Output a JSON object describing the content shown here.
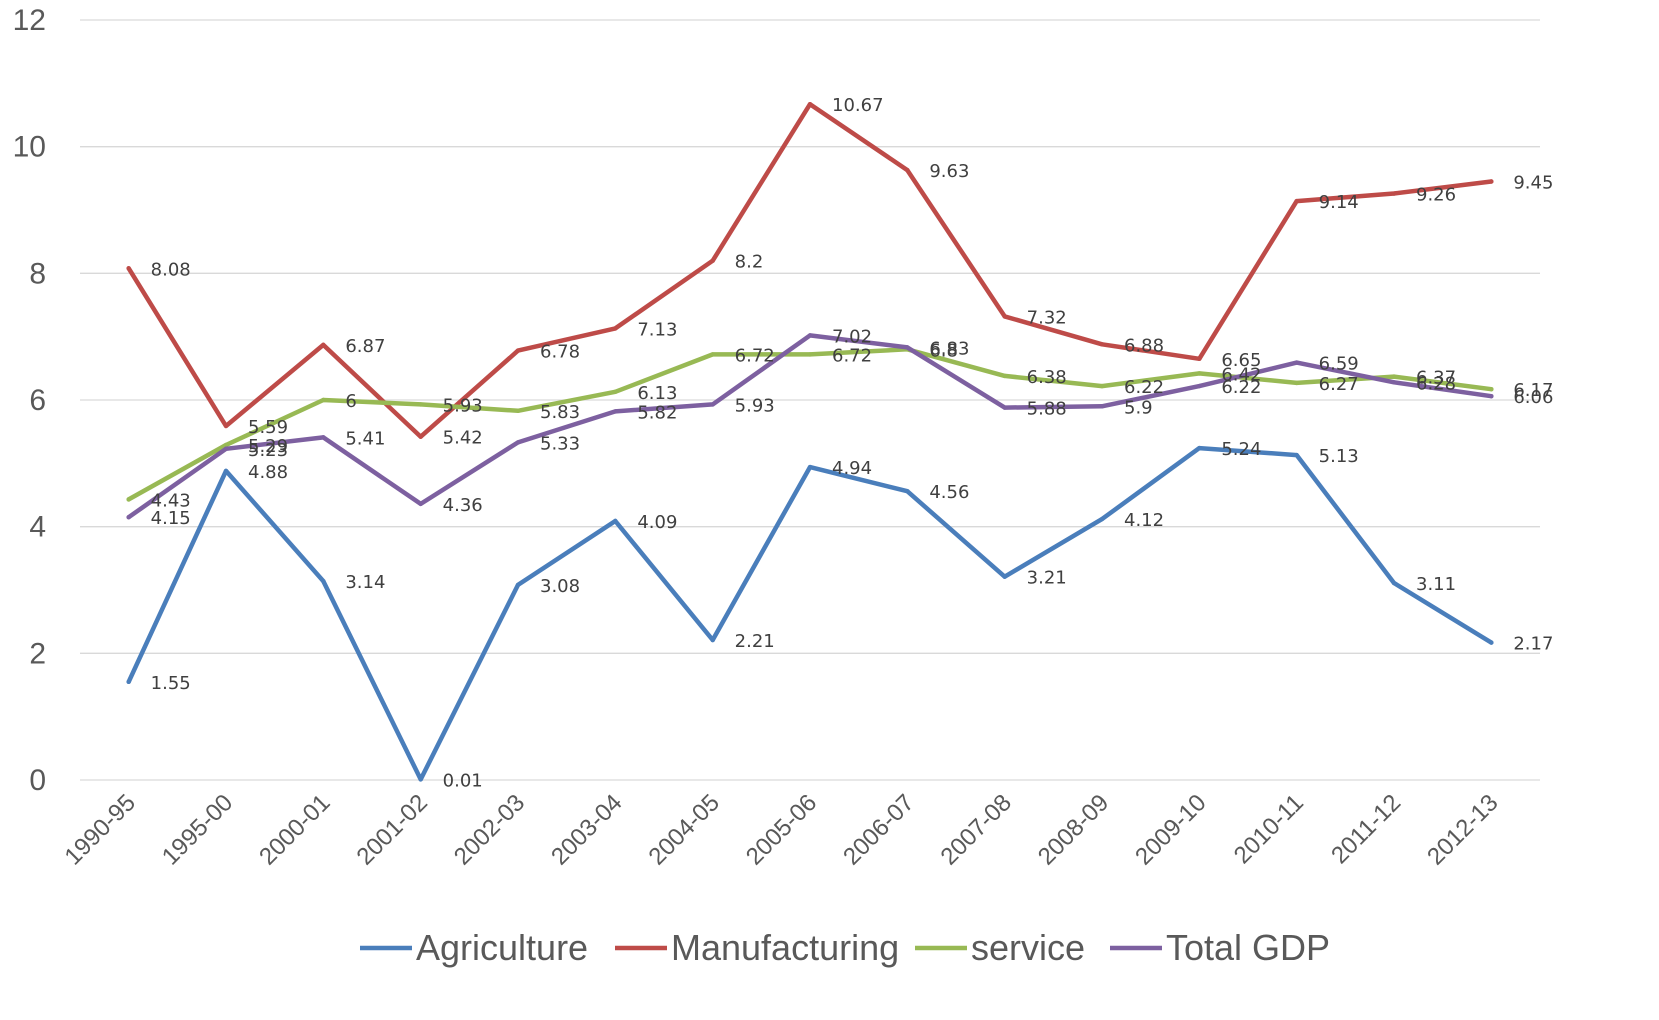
{
  "chart_data": {
    "type": "line",
    "title": "",
    "xlabel": "",
    "ylabel": "",
    "ylim": [
      0,
      12
    ],
    "yticks": [
      0,
      2,
      4,
      6,
      8,
      10,
      12
    ],
    "grid": "horizontal",
    "legend_position": "bottom",
    "categories": [
      "1990-95",
      "1995-00",
      "2000-01",
      "2001-02",
      "2002-03",
      "2003-04",
      "2004-05",
      "2005-06",
      "2006-07",
      "2007-08",
      "2008-09",
      "2009-10",
      "2010-11",
      "2011-12",
      "2012-13"
    ],
    "series": [
      {
        "name": "Agriculture",
        "color": "#4a7ebb",
        "values": [
          1.55,
          4.88,
          3.14,
          0.01,
          3.08,
          4.09,
          2.21,
          4.94,
          4.56,
          3.21,
          4.12,
          5.24,
          5.13,
          3.11,
          2.17
        ]
      },
      {
        "name": "Manufacturing",
        "color": "#be4b48",
        "values": [
          8.08,
          5.59,
          6.87,
          5.42,
          6.78,
          7.13,
          8.2,
          10.67,
          9.63,
          7.32,
          6.88,
          6.65,
          9.14,
          9.26,
          9.45
        ]
      },
      {
        "name": "service",
        "color": "#98b954",
        "values": [
          4.43,
          5.29,
          6,
          5.93,
          5.83,
          6.13,
          6.72,
          6.72,
          6.8,
          6.38,
          6.22,
          6.42,
          6.27,
          6.37,
          6.17
        ]
      },
      {
        "name": "Total GDP",
        "color": "#7d60a0",
        "values": [
          4.15,
          5.23,
          5.41,
          4.36,
          5.33,
          5.82,
          5.93,
          7.02,
          6.83,
          5.88,
          5.9,
          6.22,
          6.59,
          6.28,
          6.06
        ]
      }
    ]
  }
}
